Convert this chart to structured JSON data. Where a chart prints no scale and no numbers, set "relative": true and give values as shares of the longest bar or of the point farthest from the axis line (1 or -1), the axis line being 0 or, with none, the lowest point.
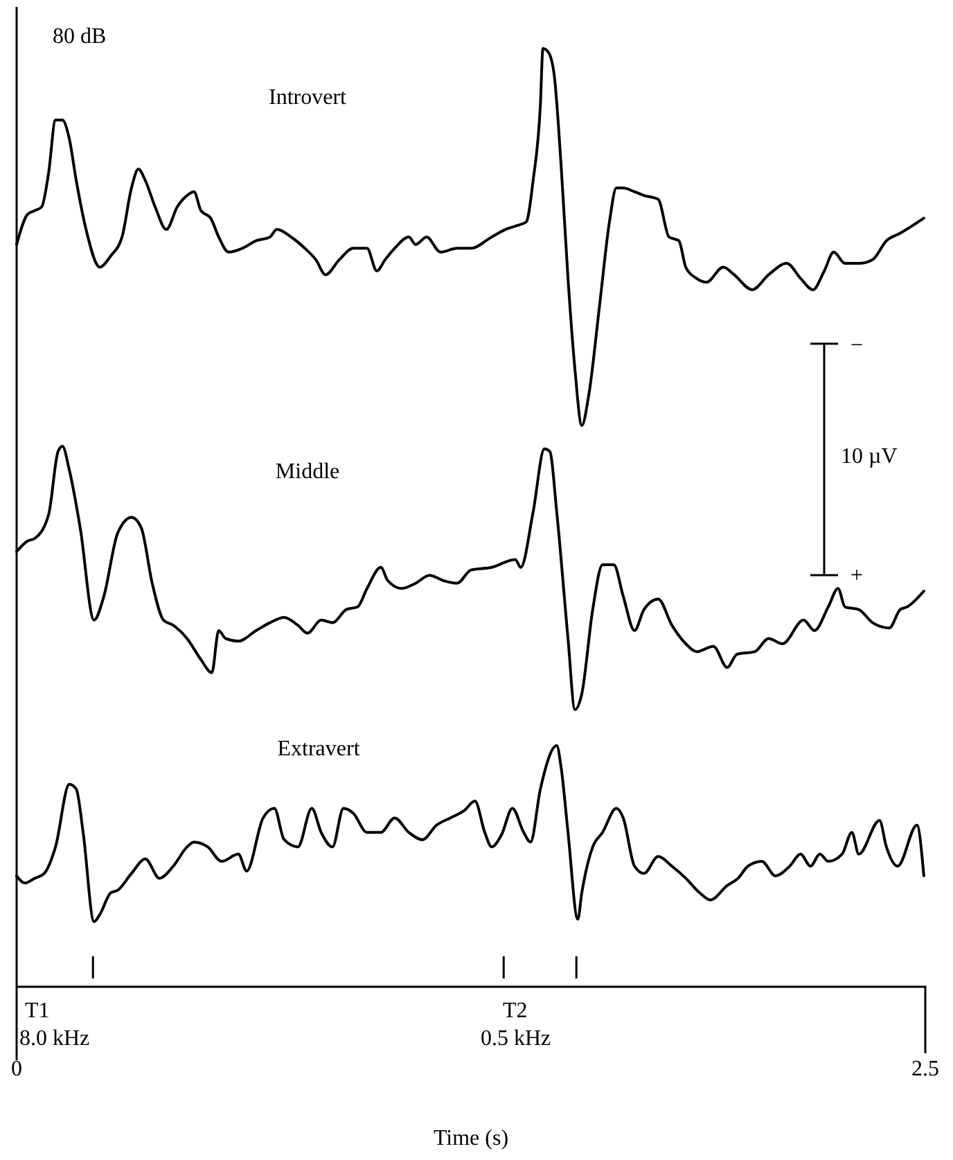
{
  "chart_data": [
    {
      "type": "line",
      "relative": true,
      "tick_labels": false,
      "xlim": [
        0,
        2.5
      ],
      "line_style": "solid",
      "annotations": [
        "80 dB"
      ],
      "series": [
        {
          "name": "Introvert",
          "color": "#000000",
          "x": [
            0,
            0.03,
            0.05,
            0.069,
            0.088,
            0.107,
            0.126,
            0.145,
            0.164,
            0.191,
            0.229,
            0.259,
            0.29,
            0.316,
            0.335,
            0.354,
            0.381,
            0.412,
            0.442,
            0.469,
            0.488,
            0.507,
            0.534,
            0.556,
            0.583,
            0.621,
            0.659,
            0.697,
            0.716,
            0.755,
            0.793,
            0.823,
            0.85,
            0.888,
            0.926,
            0.964,
            0.991,
            1.014,
            1.04,
            1.079,
            1.098,
            1.128,
            1.166,
            1.212,
            1.25,
            1.307,
            1.345,
            1.376,
            1.402,
            1.421,
            1.441,
            1.448,
            1.463,
            1.479,
            1.498,
            1.517,
            1.536,
            1.555,
            1.574,
            1.604,
            1.631,
            1.65,
            1.669,
            1.7,
            1.726,
            1.765,
            1.795,
            1.822,
            1.841,
            1.871,
            1.898,
            1.944,
            1.974,
            2.024,
            2.069,
            2.119,
            2.157,
            2.191,
            2.222,
            2.248,
            2.279,
            2.317,
            2.355,
            2.393,
            2.431,
            2.496
          ],
          "values": [
            0.48,
            0.56,
            0.57,
            0.58,
            0.67,
            0.81,
            0.81,
            0.76,
            0.65,
            0.52,
            0.42,
            0.45,
            0.5,
            0.63,
            0.68,
            0.65,
            0.58,
            0.52,
            0.58,
            0.61,
            0.62,
            0.57,
            0.55,
            0.5,
            0.46,
            0.47,
            0.49,
            0.5,
            0.52,
            0.5,
            0.47,
            0.44,
            0.4,
            0.44,
            0.47,
            0.47,
            0.41,
            0.44,
            0.47,
            0.5,
            0.48,
            0.5,
            0.46,
            0.47,
            0.47,
            0.5,
            0.52,
            0.53,
            0.54,
            0.65,
            0.85,
            1.0,
            0.99,
            0.93,
            0.69,
            0.39,
            0.15,
            0,
            0.08,
            0.32,
            0.54,
            0.63,
            0.63,
            0.62,
            0.61,
            0.6,
            0.5,
            0.49,
            0.42,
            0.39,
            0.38,
            0.42,
            0.4,
            0.36,
            0.4,
            0.43,
            0.39,
            0.36,
            0.41,
            0.46,
            0.43,
            0.43,
            0.44,
            0.49,
            0.51,
            0.55
          ]
        }
      ]
    },
    {
      "type": "line",
      "relative": true,
      "tick_labels": false,
      "xlim": [
        0,
        2.5
      ],
      "line_style": "solid",
      "annotations": [
        "10 µV",
        "−",
        "+"
      ],
      "series": [
        {
          "name": "Middle",
          "color": "#000000",
          "x": [
            0,
            0.03,
            0.05,
            0.088,
            0.114,
            0.126,
            0.145,
            0.175,
            0.213,
            0.24,
            0.278,
            0.316,
            0.343,
            0.373,
            0.404,
            0.431,
            0.469,
            0.507,
            0.537,
            0.556,
            0.575,
            0.61,
            0.659,
            0.697,
            0.736,
            0.774,
            0.8,
            0.838,
            0.869,
            0.907,
            0.938,
            0.964,
            1.002,
            1.021,
            1.059,
            1.098,
            1.136,
            1.174,
            1.212,
            1.25,
            1.307,
            1.372,
            1.387,
            1.421,
            1.452,
            1.467,
            1.486,
            1.517,
            1.536,
            1.555,
            1.585,
            1.612,
            1.643,
            1.669,
            1.7,
            1.726,
            1.765,
            1.803,
            1.841,
            1.871,
            1.917,
            1.955,
            1.982,
            2.031,
            2.069,
            2.107,
            2.165,
            2.195,
            2.233,
            2.26,
            2.279,
            2.317,
            2.355,
            2.401,
            2.431,
            2.45,
            2.496
          ],
          "values": [
            0.6,
            0.64,
            0.65,
            0.74,
            0.98,
            1.0,
            0.91,
            0.69,
            0.34,
            0.43,
            0.67,
            0.73,
            0.69,
            0.48,
            0.34,
            0.32,
            0.27,
            0.19,
            0.14,
            0.3,
            0.27,
            0.26,
            0.3,
            0.33,
            0.35,
            0.32,
            0.29,
            0.34,
            0.33,
            0.38,
            0.39,
            0.46,
            0.54,
            0.49,
            0.46,
            0.48,
            0.51,
            0.49,
            0.48,
            0.53,
            0.54,
            0.57,
            0.54,
            0.75,
            0.99,
            0.98,
            0.75,
            0.27,
            0,
            0.06,
            0.38,
            0.55,
            0.55,
            0.43,
            0.3,
            0.38,
            0.42,
            0.32,
            0.25,
            0.22,
            0.24,
            0.16,
            0.21,
            0.22,
            0.27,
            0.25,
            0.34,
            0.3,
            0.39,
            0.46,
            0.39,
            0.38,
            0.33,
            0.31,
            0.38,
            0.39,
            0.45
          ]
        }
      ]
    },
    {
      "type": "line",
      "relative": true,
      "tick_labels": "x",
      "xlim": [
        0,
        2.5
      ],
      "xticks": [
        0,
        2.5
      ],
      "xlabel": "Time (s)",
      "line_style": "solid",
      "annotations": [
        "T1",
        "8.0 kHz",
        "T2",
        "0.5 kHz"
      ],
      "series": [
        {
          "name": "Extravert",
          "color": "#000000",
          "x": [
            0,
            0.023,
            0.05,
            0.076,
            0.107,
            0.145,
            0.164,
            0.183,
            0.213,
            0.229,
            0.259,
            0.278,
            0.316,
            0.354,
            0.393,
            0.431,
            0.469,
            0.488,
            0.526,
            0.564,
            0.61,
            0.633,
            0.678,
            0.709,
            0.736,
            0.774,
            0.812,
            0.838,
            0.869,
            0.899,
            0.926,
            0.964,
            1.002,
            1.04,
            1.079,
            1.117,
            1.155,
            1.193,
            1.231,
            1.261,
            1.288,
            1.307,
            1.334,
            1.364,
            1.395,
            1.414,
            1.441,
            1.486,
            1.498,
            1.517,
            1.544,
            1.555,
            1.585,
            1.612,
            1.65,
            1.669,
            1.7,
            1.726,
            1.765,
            1.803,
            1.841,
            1.879,
            1.909,
            1.955,
            1.985,
            2.012,
            2.05,
            2.088,
            2.127,
            2.157,
            2.184,
            2.21,
            2.233,
            2.271,
            2.298,
            2.317,
            2.374,
            2.393,
            2.424,
            2.477,
            2.496
          ],
          "values": [
            0.46,
            0.43,
            0.45,
            0.47,
            0.58,
            0.84,
            0.82,
            0.64,
            0.27,
            0.3,
            0.39,
            0.4,
            0.47,
            0.53,
            0.45,
            0.5,
            0.58,
            0.6,
            0.58,
            0.52,
            0.55,
            0.48,
            0.7,
            0.74,
            0.61,
            0.58,
            0.74,
            0.64,
            0.58,
            0.74,
            0.72,
            0.64,
            0.64,
            0.7,
            0.64,
            0.61,
            0.67,
            0.7,
            0.73,
            0.77,
            0.64,
            0.58,
            0.63,
            0.74,
            0.64,
            0.6,
            0.82,
            1.0,
            0.91,
            0.64,
            0.28,
            0.39,
            0.58,
            0.64,
            0.74,
            0.7,
            0.5,
            0.47,
            0.54,
            0.5,
            0.45,
            0.39,
            0.36,
            0.42,
            0.45,
            0.5,
            0.52,
            0.46,
            0.5,
            0.55,
            0.5,
            0.55,
            0.52,
            0.55,
            0.64,
            0.55,
            0.69,
            0.58,
            0.5,
            0.67,
            0.46
          ]
        }
      ]
    }
  ]
}
